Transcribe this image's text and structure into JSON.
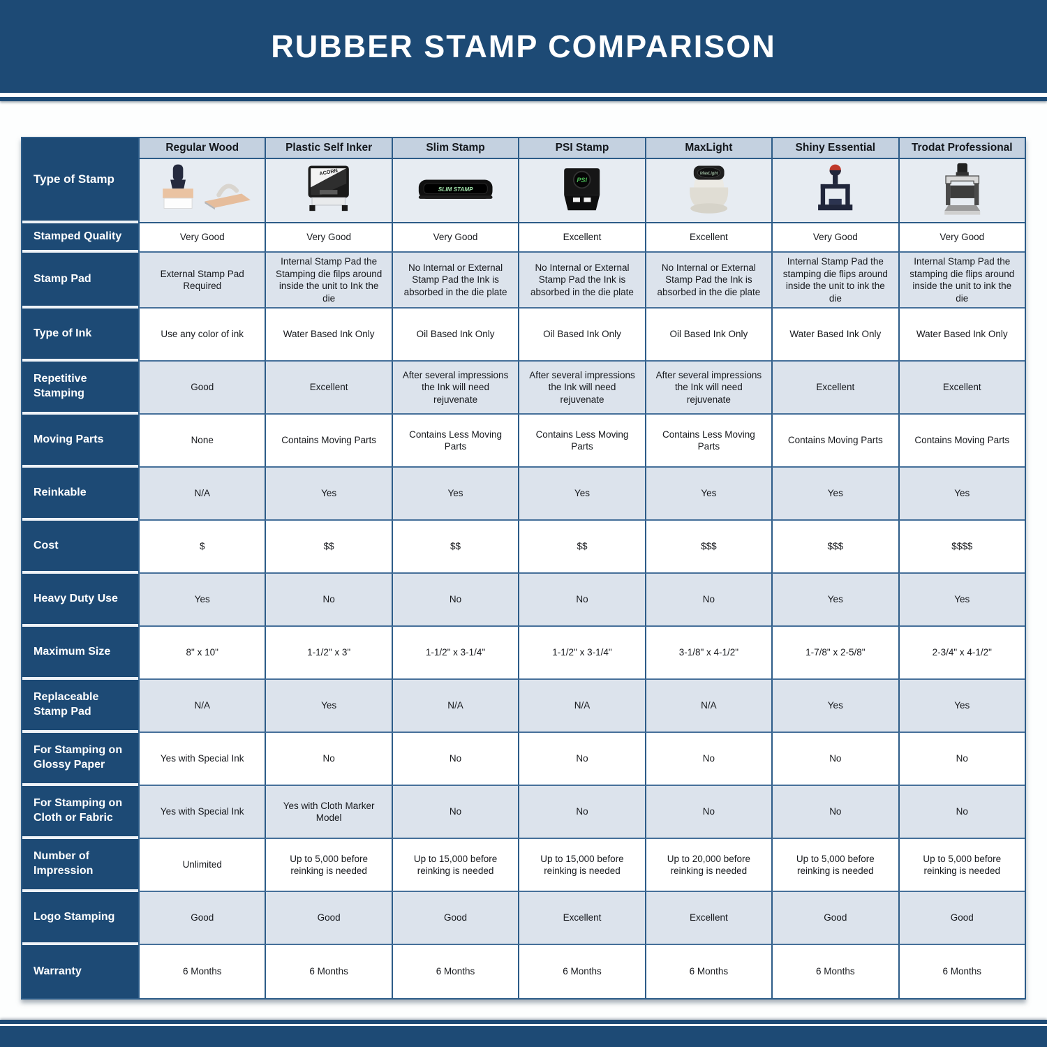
{
  "page": {
    "title": "RUBBER STAMP COMPARISON"
  },
  "colors": {
    "banner_navy": "#1d4a75",
    "header_band": "#c4d1e0",
    "shaded_row": "#dce3ec",
    "grid_line": "#2d5c88"
  },
  "table": {
    "corner_label": "Type of Stamp",
    "columns": [
      {
        "label": "Regular Wood",
        "icon": "regular-wood-stamp-icon",
        "icon_label": ""
      },
      {
        "label": "Plastic Self Inker",
        "icon": "plastic-self-inker-stamp-icon",
        "icon_label": "ACORN"
      },
      {
        "label": "Slim Stamp",
        "icon": "slim-stamp-icon",
        "icon_label": "SLIM STAMP"
      },
      {
        "label": "PSI Stamp",
        "icon": "psi-stamp-icon",
        "icon_label": "PSI"
      },
      {
        "label": "MaxLight",
        "icon": "maxlight-stamp-icon",
        "icon_label": "MaxLight"
      },
      {
        "label": "Shiny Essential",
        "icon": "shiny-essential-stamp-icon",
        "icon_label": ""
      },
      {
        "label": "Trodat Professional",
        "icon": "trodat-professional-stamp-icon",
        "icon_label": ""
      }
    ],
    "rows": [
      {
        "label": "Stamped Quality",
        "values": [
          "Very Good",
          "Very Good",
          "Very Good",
          "Excellent",
          "Excellent",
          "Very Good",
          "Very Good"
        ]
      },
      {
        "label": "Stamp Pad",
        "values": [
          "External Stamp Pad Required",
          "Internal Stamp Pad the Stamping die filps around inside the unit to Ink the die",
          "No Internal or External Stamp Pad the Ink is absorbed in the die plate",
          "No Internal or External Stamp Pad the Ink is absorbed in the die plate",
          "No Internal or External Stamp Pad the Ink is absorbed in the die plate",
          "Internal Stamp Pad the stamping die flips around inside the unit to ink the die",
          "Internal Stamp Pad the stamping die flips around inside the unit to ink the die"
        ]
      },
      {
        "label": "Type of Ink",
        "values": [
          "Use any color of ink",
          "Water Based Ink Only",
          "Oil Based Ink Only",
          "Oil Based Ink Only",
          "Oil Based Ink Only",
          "Water Based Ink Only",
          "Water Based Ink Only"
        ]
      },
      {
        "label": "Repetitive Stamping",
        "values": [
          "Good",
          "Excellent",
          "After several impressions the Ink will need rejuvenate",
          "After several impressions the Ink will need rejuvenate",
          "After several impressions the Ink will need rejuvenate",
          "Excellent",
          "Excellent"
        ]
      },
      {
        "label": "Moving Parts",
        "values": [
          "None",
          "Contains Moving Parts",
          "Contains Less Moving Parts",
          "Contains Less Moving Parts",
          "Contains Less Moving Parts",
          "Contains Moving Parts",
          "Contains Moving Parts"
        ]
      },
      {
        "label": "Reinkable",
        "values": [
          "N/A",
          "Yes",
          "Yes",
          "Yes",
          "Yes",
          "Yes",
          "Yes"
        ]
      },
      {
        "label": "Cost",
        "values": [
          "$",
          "$$",
          "$$",
          "$$",
          "$$$",
          "$$$",
          "$$$$"
        ]
      },
      {
        "label": "Heavy Duty Use",
        "values": [
          "Yes",
          "No",
          "No",
          "No",
          "No",
          "Yes",
          "Yes"
        ]
      },
      {
        "label": "Maximum Size",
        "values": [
          "8\" x 10\"",
          "1-1/2\" x 3\"",
          "1-1/2\" x 3-1/4\"",
          "1-1/2\" x 3-1/4\"",
          "3-1/8\" x 4-1/2\"",
          "1-7/8\" x 2-5/8\"",
          "2-3/4\" x 4-1/2\""
        ]
      },
      {
        "label": "Replaceable Stamp Pad",
        "values": [
          "N/A",
          "Yes",
          "N/A",
          "N/A",
          "N/A",
          "Yes",
          "Yes"
        ]
      },
      {
        "label": "For Stamping on Glossy Paper",
        "values": [
          "Yes with Special Ink",
          "No",
          "No",
          "No",
          "No",
          "No",
          "No"
        ]
      },
      {
        "label": "For Stamping on Cloth or Fabric",
        "values": [
          "Yes with Special Ink",
          "Yes with Cloth Marker Model",
          "No",
          "No",
          "No",
          "No",
          "No"
        ]
      },
      {
        "label": "Number of Impression",
        "values": [
          "Unlimited",
          "Up to 5,000 before reinking is needed",
          "Up to 15,000 before reinking is needed",
          "Up to 15,000 before reinking is needed",
          "Up to 20,000 before reinking is needed",
          "Up to 5,000 before reinking is needed",
          "Up to 5,000 before reinking is needed"
        ]
      },
      {
        "label": "Logo Stamping",
        "values": [
          "Good",
          "Good",
          "Good",
          "Excellent",
          "Excellent",
          "Good",
          "Good"
        ]
      },
      {
        "label": "Warranty",
        "values": [
          "6 Months",
          "6 Months",
          "6 Months",
          "6 Months",
          "6 Months",
          "6 Months",
          "6 Months"
        ]
      }
    ]
  }
}
